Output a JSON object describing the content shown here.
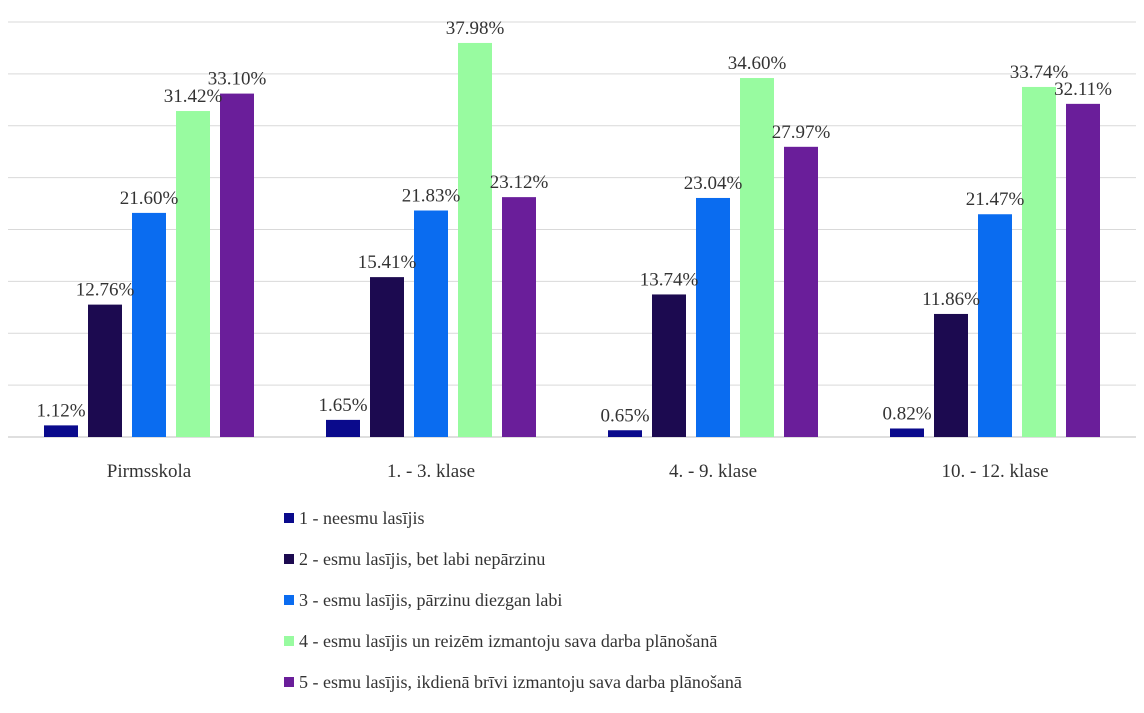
{
  "chart_data": {
    "type": "bar",
    "categories": [
      "Pirmsskola",
      "1. - 3. klase",
      "4. - 9. klase",
      "10. - 12. klase"
    ],
    "series": [
      {
        "name": "1 - neesmu lasījis",
        "color": "#0a0a8c",
        "values": [
          1.12,
          1.65,
          0.65,
          0.82
        ],
        "labels": [
          "1.12%",
          "1.65%",
          "0.65%",
          "0.82%"
        ]
      },
      {
        "name": "2 - esmu lasījis, bet labi nepārzinu",
        "color": "#1c0a50",
        "values": [
          12.76,
          15.41,
          13.74,
          11.86
        ],
        "labels": [
          "12.76%",
          "15.41%",
          "13.74%",
          "11.86%"
        ]
      },
      {
        "name": "3 - esmu lasījis, pārzinu diezgan labi",
        "color": "#0a6cf0",
        "values": [
          21.6,
          21.83,
          23.04,
          21.47
        ],
        "labels": [
          "21.60%",
          "21.83%",
          "23.04%",
          "21.47%"
        ]
      },
      {
        "name": "4 - esmu lasījis un reizēm izmantoju sava darba plānošanā",
        "color": "#98fba0",
        "values": [
          31.42,
          37.98,
          34.6,
          33.74
        ],
        "labels": [
          "31.42%",
          "37.98%",
          "34.60%",
          "33.74%"
        ]
      },
      {
        "name": "5 - esmu lasījis, ikdienā brīvi izmantoju sava darba plānošanā",
        "color": "#6a1e9a",
        "values": [
          33.1,
          23.12,
          27.97,
          32.11
        ],
        "labels": [
          "33.10%",
          "23.12%",
          "27.97%",
          "32.11%"
        ]
      }
    ],
    "ylim": [
      0,
      40
    ],
    "gridlines": true,
    "legend_position": "bottom",
    "y_axis_labels_shown": false
  }
}
